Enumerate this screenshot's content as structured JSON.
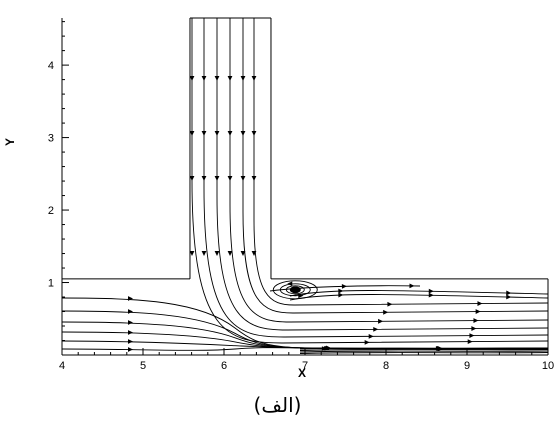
{
  "figure": {
    "caption": "(الف)",
    "x_axis": {
      "title": "X",
      "range": [
        4,
        10
      ],
      "ticks": [
        {
          "value": 4,
          "label": "4"
        },
        {
          "value": 5,
          "label": "5"
        },
        {
          "value": 6,
          "label": "6"
        },
        {
          "value": 7,
          "label": "7"
        },
        {
          "value": 8,
          "label": "8"
        },
        {
          "value": 9,
          "label": "9"
        },
        {
          "value": 10,
          "label": "10"
        }
      ]
    },
    "y_axis": {
      "title": "Y",
      "range": [
        0,
        4.65
      ],
      "ticks": [
        {
          "value": 1,
          "label": "1"
        },
        {
          "value": 2,
          "label": "2"
        },
        {
          "value": 3,
          "label": "3"
        },
        {
          "value": 4,
          "label": "4"
        }
      ]
    },
    "geometry": {
      "main_channel": {
        "x": [
          4,
          10
        ],
        "y": [
          0,
          1.05
        ]
      },
      "branch_channel": {
        "x": [
          5.58,
          6.58
        ],
        "y": [
          1.05,
          4.65
        ]
      }
    },
    "recirculation_center": {
      "x": 6.88,
      "y": 0.9
    },
    "line_color": "#000000"
  }
}
